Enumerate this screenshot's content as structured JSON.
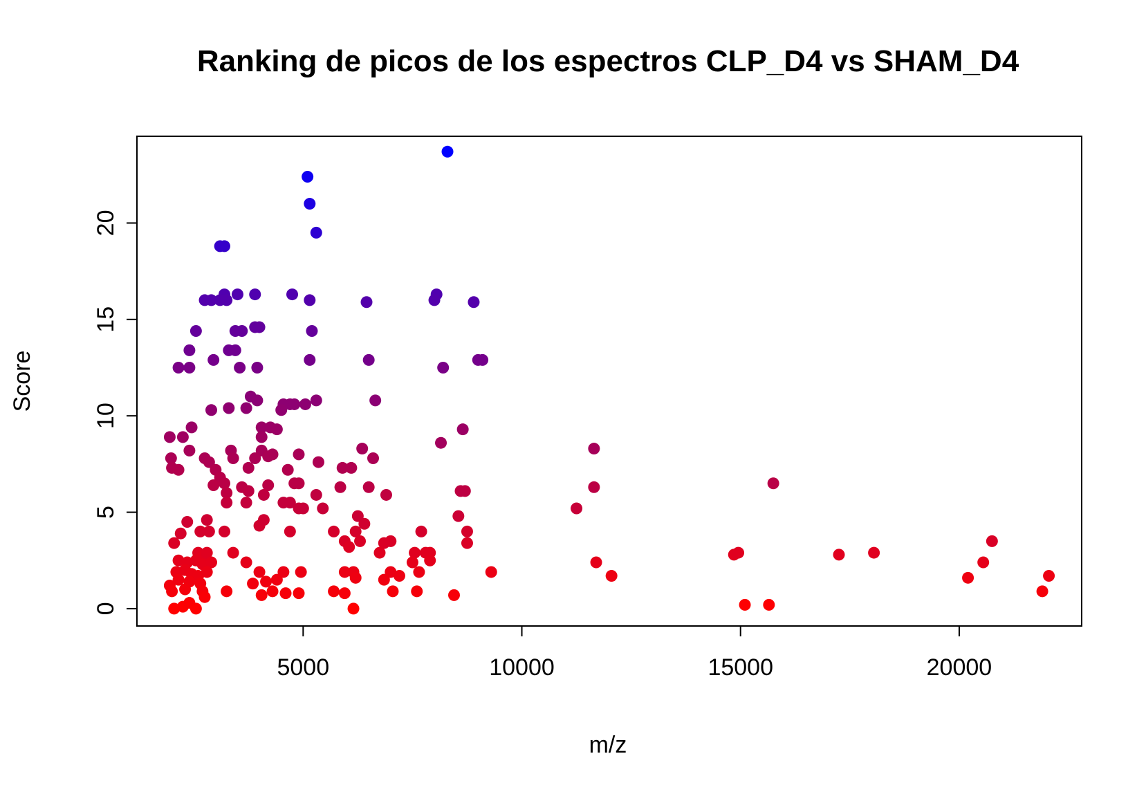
{
  "chart_data": {
    "type": "scatter",
    "title": "Ranking de picos de los espectros CLP_D4 vs SHAM_D4",
    "xlabel": "m/z",
    "ylabel": "Score",
    "xlim": [
      1200,
      22800
    ],
    "ylim": [
      -0.9,
      24.5
    ],
    "xticks": [
      5000,
      10000,
      15000,
      20000
    ],
    "xtick_labels": [
      "5000",
      "10000",
      "15000",
      "20000"
    ],
    "yticks": [
      0,
      5,
      10,
      15,
      20
    ],
    "ytick_labels": [
      "0",
      "5",
      "10",
      "15",
      "20"
    ],
    "grid": false,
    "legend": "none",
    "color_scale": {
      "low": "#ff0000",
      "high": "#0000ff",
      "by": "score"
    },
    "points": [
      [
        8300,
        23.7
      ],
      [
        5100,
        22.4
      ],
      [
        5150,
        21.0
      ],
      [
        5300,
        19.5
      ],
      [
        3100,
        18.8
      ],
      [
        3200,
        18.8
      ],
      [
        3200,
        16.3
      ],
      [
        3500,
        16.3
      ],
      [
        3900,
        16.3
      ],
      [
        4750,
        16.3
      ],
      [
        8050,
        16.3
      ],
      [
        2750,
        16.0
      ],
      [
        2900,
        16.0
      ],
      [
        3100,
        16.0
      ],
      [
        3250,
        16.0
      ],
      [
        5150,
        16.0
      ],
      [
        6450,
        15.9
      ],
      [
        8000,
        16.0
      ],
      [
        8900,
        15.9
      ],
      [
        3900,
        14.6
      ],
      [
        4000,
        14.6
      ],
      [
        2550,
        14.4
      ],
      [
        3450,
        14.4
      ],
      [
        3600,
        14.4
      ],
      [
        5200,
        14.4
      ],
      [
        2400,
        13.4
      ],
      [
        3300,
        13.4
      ],
      [
        3450,
        13.4
      ],
      [
        2950,
        12.9
      ],
      [
        5150,
        12.9
      ],
      [
        6500,
        12.9
      ],
      [
        9000,
        12.9
      ],
      [
        9100,
        12.9
      ],
      [
        2150,
        12.5
      ],
      [
        2400,
        12.5
      ],
      [
        3550,
        12.5
      ],
      [
        3950,
        12.5
      ],
      [
        8200,
        12.5
      ],
      [
        3800,
        11.0
      ],
      [
        3950,
        10.8
      ],
      [
        5300,
        10.8
      ],
      [
        6650,
        10.8
      ],
      [
        4550,
        10.6
      ],
      [
        4700,
        10.6
      ],
      [
        4800,
        10.6
      ],
      [
        5050,
        10.6
      ],
      [
        2900,
        10.3
      ],
      [
        3300,
        10.4
      ],
      [
        3700,
        10.4
      ],
      [
        4500,
        10.3
      ],
      [
        2450,
        9.4
      ],
      [
        4050,
        9.4
      ],
      [
        4250,
        9.4
      ],
      [
        4400,
        9.3
      ],
      [
        8650,
        9.3
      ],
      [
        1950,
        8.9
      ],
      [
        2250,
        8.9
      ],
      [
        4050,
        8.9
      ],
      [
        3350,
        8.2
      ],
      [
        4050,
        8.2
      ],
      [
        2400,
        8.2
      ],
      [
        6350,
        8.3
      ],
      [
        11650,
        8.3
      ],
      [
        8150,
        8.6
      ],
      [
        4300,
        8.0
      ],
      [
        4900,
        8.0
      ],
      [
        1980,
        7.8
      ],
      [
        2750,
        7.8
      ],
      [
        2850,
        7.6
      ],
      [
        3400,
        7.8
      ],
      [
        3900,
        7.8
      ],
      [
        5350,
        7.6
      ],
      [
        6600,
        7.8
      ],
      [
        4200,
        7.9
      ],
      [
        2000,
        7.3
      ],
      [
        2150,
        7.2
      ],
      [
        3000,
        7.2
      ],
      [
        3750,
        7.3
      ],
      [
        4650,
        7.2
      ],
      [
        5900,
        7.3
      ],
      [
        6100,
        7.3
      ],
      [
        3100,
        6.8
      ],
      [
        3200,
        6.5
      ],
      [
        2950,
        6.4
      ],
      [
        3250,
        6.0
      ],
      [
        3600,
        6.3
      ],
      [
        3750,
        6.1
      ],
      [
        4200,
        6.4
      ],
      [
        4800,
        6.5
      ],
      [
        4900,
        6.5
      ],
      [
        5850,
        6.3
      ],
      [
        6500,
        6.3
      ],
      [
        8600,
        6.1
      ],
      [
        8700,
        6.1
      ],
      [
        11650,
        6.3
      ],
      [
        15750,
        6.5
      ],
      [
        3250,
        5.5
      ],
      [
        3700,
        5.5
      ],
      [
        4100,
        5.9
      ],
      [
        4550,
        5.5
      ],
      [
        4700,
        5.5
      ],
      [
        5300,
        5.9
      ],
      [
        6900,
        5.9
      ],
      [
        4900,
        5.2
      ],
      [
        5000,
        5.2
      ],
      [
        5450,
        5.2
      ],
      [
        11250,
        5.2
      ],
      [
        2350,
        4.5
      ],
      [
        2800,
        4.6
      ],
      [
        4000,
        4.3
      ],
      [
        4100,
        4.6
      ],
      [
        6250,
        4.8
      ],
      [
        6400,
        4.4
      ],
      [
        8550,
        4.8
      ],
      [
        2200,
        3.9
      ],
      [
        2650,
        4.0
      ],
      [
        2850,
        4.0
      ],
      [
        3200,
        4.0
      ],
      [
        4700,
        4.0
      ],
      [
        5700,
        4.0
      ],
      [
        6200,
        4.0
      ],
      [
        7700,
        4.0
      ],
      [
        8750,
        4.0
      ],
      [
        2050,
        3.4
      ],
      [
        5950,
        3.5
      ],
      [
        6050,
        3.2
      ],
      [
        6300,
        3.5
      ],
      [
        6850,
        3.4
      ],
      [
        7000,
        3.5
      ],
      [
        8750,
        3.4
      ],
      [
        20750,
        3.5
      ],
      [
        2600,
        2.9
      ],
      [
        2700,
        2.7
      ],
      [
        2800,
        2.9
      ],
      [
        3400,
        2.9
      ],
      [
        6750,
        2.9
      ],
      [
        7550,
        2.9
      ],
      [
        7800,
        2.9
      ],
      [
        7900,
        2.9
      ],
      [
        14850,
        2.8
      ],
      [
        14950,
        2.9
      ],
      [
        17250,
        2.8
      ],
      [
        18050,
        2.9
      ],
      [
        2150,
        2.5
      ],
      [
        2350,
        2.4
      ],
      [
        2550,
        2.5
      ],
      [
        2700,
        2.3
      ],
      [
        2900,
        2.4
      ],
      [
        3700,
        2.4
      ],
      [
        7500,
        2.4
      ],
      [
        7900,
        2.5
      ],
      [
        11700,
        2.4
      ],
      [
        20550,
        2.4
      ],
      [
        2100,
        1.9
      ],
      [
        2300,
        2.0
      ],
      [
        2450,
        1.8
      ],
      [
        2600,
        1.7
      ],
      [
        2800,
        1.9
      ],
      [
        4000,
        1.9
      ],
      [
        4550,
        1.9
      ],
      [
        4950,
        1.9
      ],
      [
        5950,
        1.9
      ],
      [
        6150,
        1.9
      ],
      [
        7000,
        1.9
      ],
      [
        7650,
        1.9
      ],
      [
        9300,
        1.9
      ],
      [
        1950,
        1.2
      ],
      [
        2150,
        1.5
      ],
      [
        2400,
        1.4
      ],
      [
        2650,
        1.3
      ],
      [
        3850,
        1.3
      ],
      [
        4150,
        1.4
      ],
      [
        4400,
        1.5
      ],
      [
        6200,
        1.6
      ],
      [
        6850,
        1.5
      ],
      [
        7200,
        1.7
      ],
      [
        12050,
        1.7
      ],
      [
        20200,
        1.6
      ],
      [
        22050,
        1.7
      ],
      [
        2000,
        0.9
      ],
      [
        2300,
        1.0
      ],
      [
        2700,
        0.9
      ],
      [
        3250,
        0.9
      ],
      [
        4050,
        0.7
      ],
      [
        4300,
        0.9
      ],
      [
        4600,
        0.8
      ],
      [
        4900,
        0.8
      ],
      [
        5700,
        0.9
      ],
      [
        5950,
        0.8
      ],
      [
        7050,
        0.9
      ],
      [
        7600,
        0.9
      ],
      [
        8450,
        0.7
      ],
      [
        21900,
        0.9
      ],
      [
        2050,
        0.0
      ],
      [
        2250,
        0.1
      ],
      [
        2400,
        0.3
      ],
      [
        2550,
        0.0
      ],
      [
        2750,
        0.6
      ],
      [
        6150,
        0.0
      ],
      [
        15100,
        0.2
      ],
      [
        15650,
        0.2
      ]
    ]
  }
}
